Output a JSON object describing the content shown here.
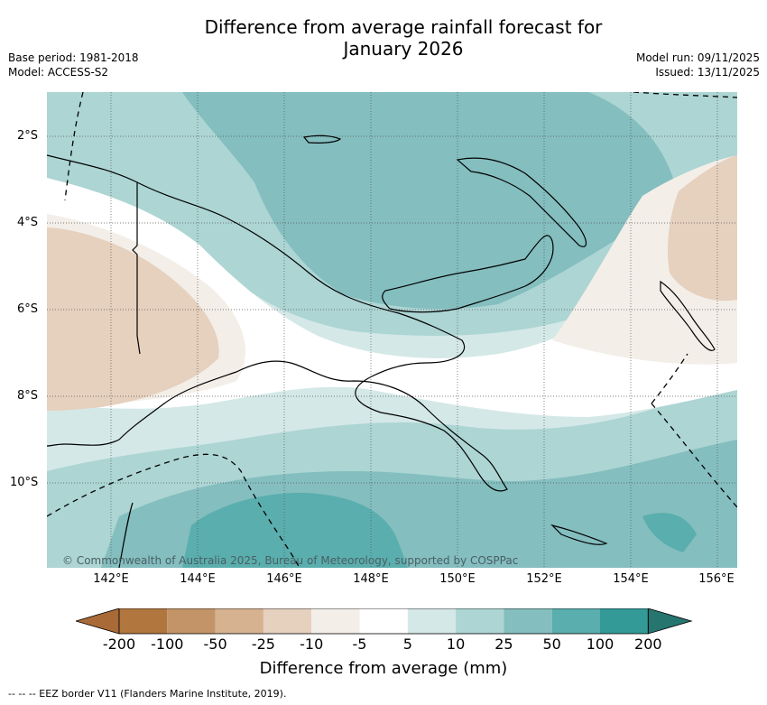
{
  "title": {
    "line1": "Difference from average rainfall forecast for",
    "line2": "January 2026"
  },
  "meta_left": {
    "base_period": "Base period: 1981-2018",
    "model": "Model: ACCESS-S2"
  },
  "meta_right": {
    "model_run": "Model run: 09/11/2025",
    "issued": "Issued: 13/11/2025"
  },
  "latitude_ticks": [
    "2°S",
    "4°S",
    "6°S",
    "8°S",
    "10°S"
  ],
  "longitude_ticks": [
    "142°E",
    "144°E",
    "146°E",
    "148°E",
    "150°E",
    "152°E",
    "154°E",
    "156°E"
  ],
  "copyright": "© Commonwealth of Australia 2025, Bureau of Meteorology, supported by COSPPac",
  "colorbar": {
    "labels": [
      "-200",
      "-100",
      "-50",
      "-25",
      "-10",
      "-5",
      "5",
      "10",
      "25",
      "50",
      "100",
      "200"
    ],
    "colors": [
      "#a96a37",
      "#b1763e",
      "#c39468",
      "#d6b291",
      "#e6d0be",
      "#f3eee8",
      "#ffffff",
      "#d4e8e7",
      "#acd5d3",
      "#84bebf",
      "#5aaeae",
      "#339a97",
      "#26756f"
    ],
    "title": "Difference from average (mm)"
  },
  "eez_note": "--  --  -- EEZ border V11 (Flanders Marine Institute, 2019).",
  "map_colors": {
    "category_5_10": "#d4e8e7",
    "category_10_25": "#acd5d3",
    "category_25_50": "#84bebf",
    "category_50_100": "#5aaeae",
    "category_neg5_neg10": "#f3eee8",
    "category_neg10_neg25": "#e6d0be"
  }
}
